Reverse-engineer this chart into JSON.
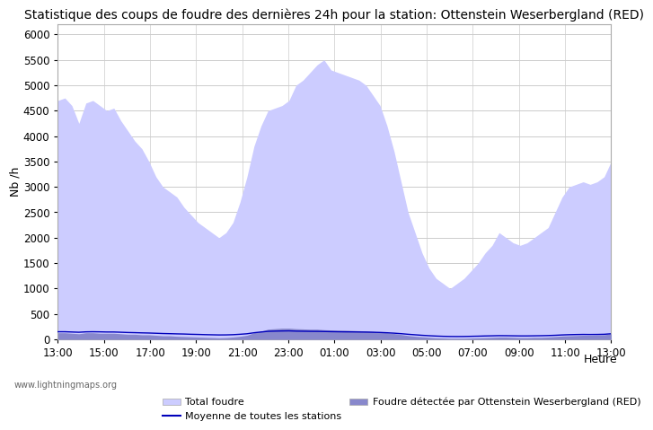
{
  "title": "Statistique des coups de foudre des dernières 24h pour la station: Ottenstein Weserbergland (RED)",
  "ylabel": "Nb /h",
  "xlabel_right": "Heure",
  "watermark": "www.lightningmaps.org",
  "x_ticks": [
    "13:00",
    "15:00",
    "17:00",
    "19:00",
    "21:00",
    "23:00",
    "01:00",
    "03:00",
    "05:00",
    "07:00",
    "09:00",
    "11:00",
    "13:00"
  ],
  "ylim": [
    0,
    6200
  ],
  "yticks": [
    0,
    500,
    1000,
    1500,
    2000,
    2500,
    3000,
    3500,
    4000,
    4500,
    5000,
    5500,
    6000
  ],
  "total_foudre": [
    4700,
    4750,
    4600,
    4250,
    4650,
    4700,
    4600,
    4500,
    4550,
    4300,
    4100,
    3900,
    3750,
    3500,
    3200,
    3000,
    2900,
    2800,
    2600,
    2450,
    2300,
    2200,
    2100,
    2000,
    2100,
    2300,
    2700,
    3200,
    3800,
    4200,
    4500,
    4550,
    4600,
    4700,
    5000,
    5100,
    5250,
    5400,
    5500,
    5300,
    5250,
    5200,
    5150,
    5100,
    5000,
    4800,
    4600,
    4200,
    3700,
    3100,
    2500,
    2100,
    1700,
    1400,
    1200,
    1100,
    1000,
    1100,
    1200,
    1350,
    1500,
    1700,
    1850,
    2100,
    2000,
    1900,
    1850,
    1900,
    2000,
    2100,
    2200,
    2500,
    2800,
    3000,
    3050,
    3100,
    3050,
    3100,
    3200,
    3500
  ],
  "foudre_detectee": [
    130,
    130,
    120,
    110,
    130,
    130,
    120,
    120,
    120,
    110,
    100,
    100,
    90,
    90,
    80,
    70,
    70,
    60,
    55,
    50,
    45,
    40,
    35,
    30,
    35,
    45,
    60,
    80,
    130,
    160,
    200,
    210,
    220,
    220,
    210,
    205,
    200,
    200,
    190,
    185,
    180,
    180,
    175,
    170,
    165,
    155,
    145,
    130,
    115,
    95,
    75,
    60,
    50,
    40,
    30,
    25,
    20,
    20,
    20,
    25,
    30,
    35,
    40,
    45,
    45,
    40,
    35,
    35,
    40,
    40,
    45,
    55,
    65,
    70,
    75,
    80,
    80,
    85,
    90,
    110
  ],
  "moyenne": [
    150,
    150,
    145,
    140,
    148,
    150,
    148,
    145,
    145,
    140,
    135,
    132,
    128,
    125,
    120,
    115,
    112,
    108,
    105,
    100,
    97,
    93,
    90,
    87,
    88,
    92,
    100,
    110,
    130,
    145,
    158,
    162,
    165,
    167,
    162,
    160,
    158,
    157,
    155,
    152,
    150,
    148,
    147,
    145,
    143,
    140,
    136,
    130,
    122,
    112,
    100,
    90,
    80,
    72,
    65,
    60,
    57,
    56,
    57,
    60,
    63,
    67,
    70,
    73,
    72,
    70,
    68,
    68,
    70,
    72,
    75,
    80,
    87,
    92,
    95,
    97,
    96,
    97,
    100,
    110
  ],
  "color_total": "#ccccff",
  "color_detectee": "#8888cc",
  "color_moyenne": "#0000bb",
  "background_color": "#ffffff",
  "plot_bg_color": "#ffffff",
  "grid_color": "#cccccc",
  "title_fontsize": 10,
  "axis_fontsize": 9,
  "tick_fontsize": 8.5
}
